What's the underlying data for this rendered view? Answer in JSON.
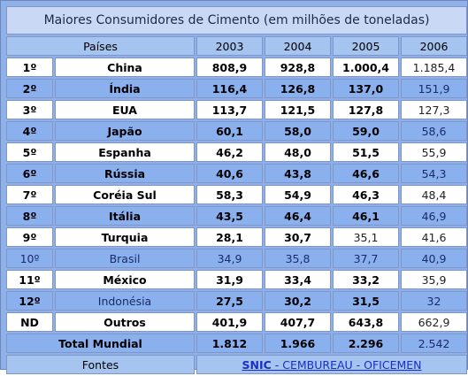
{
  "title": "Maiores Consumidores de Cimento (em milhões de toneladas)",
  "headers": {
    "country": "Países",
    "years": [
      "2003",
      "2004",
      "2005",
      "2006"
    ]
  },
  "rows": [
    {
      "rank": "1º",
      "country": "China",
      "values": [
        "808,9",
        "928,8",
        "1.000,4",
        "1.185,4"
      ]
    },
    {
      "rank": "2º",
      "country": "Índia",
      "values": [
        "116,4",
        "126,8",
        "137,0",
        "151,9"
      ]
    },
    {
      "rank": "3º",
      "country": "EUA",
      "values": [
        "113,7",
        "121,5",
        "127,8",
        "127,3"
      ]
    },
    {
      "rank": "4º",
      "country": "Japão",
      "values": [
        "60,1",
        "58,0",
        "59,0",
        "58,6"
      ]
    },
    {
      "rank": "5º",
      "country": "Espanha",
      "values": [
        "46,2",
        "48,0",
        "51,5",
        "55,9"
      ]
    },
    {
      "rank": "6º",
      "country": "Rússia",
      "values": [
        "40,6",
        "43,8",
        "46,6",
        "54,3"
      ]
    },
    {
      "rank": "7º",
      "country": "Coréia Sul",
      "values": [
        "58,3",
        "54,9",
        "46,3",
        "48,4"
      ]
    },
    {
      "rank": "8º",
      "country": "Itália",
      "values": [
        "43,5",
        "46,4",
        "46,1",
        "46,9"
      ]
    },
    {
      "rank": "9º",
      "country": "Turquia",
      "values": [
        "28,1",
        "30,7",
        "35,1",
        "41,6"
      ]
    },
    {
      "rank": "10º",
      "country": "Brasil",
      "values": [
        "34,9",
        "35,8",
        "37,7",
        "40,9"
      ]
    },
    {
      "rank": "11º",
      "country": "México",
      "values": [
        "31,9",
        "33,4",
        "33,2",
        "35,9"
      ]
    },
    {
      "rank": "12º",
      "country": "Indonésia",
      "values": [
        "27,5",
        "30,2",
        "31,5",
        "32"
      ]
    },
    {
      "rank": "ND",
      "country": "Outros",
      "values": [
        "401,9",
        "407,7",
        "643,8",
        "662,9"
      ]
    }
  ],
  "total": {
    "label": "Total Mundial",
    "values": [
      "1.812",
      "1.966",
      "2.296",
      "2.542"
    ]
  },
  "sources": {
    "label": "Fontes",
    "snic": "SNIC",
    "links": " - CEMBUREAU - OFICEMEN"
  }
}
